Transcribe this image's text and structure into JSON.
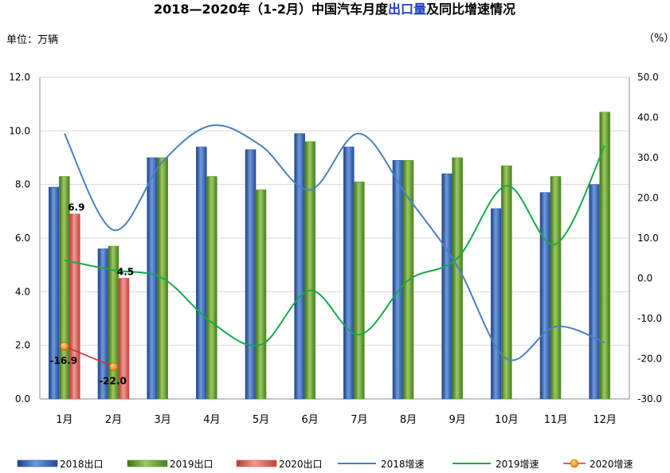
{
  "chart_data": {
    "type": "bar",
    "title_parts": [
      {
        "text": "2018—2020年（1-2月）中国汽车月度",
        "highlight": false
      },
      {
        "text": "出口量",
        "highlight": true
      },
      {
        "text": "及同比增速情况",
        "highlight": false
      }
    ],
    "left_unit": "单位：万辆",
    "right_unit": "（%）",
    "categories": [
      "1月",
      "2月",
      "3月",
      "4月",
      "5月",
      "6月",
      "7月",
      "8月",
      "9月",
      "10月",
      "11月",
      "12月"
    ],
    "left_axis": {
      "min": 0,
      "max": 12,
      "step": 2,
      "ticks": [
        "0.0",
        "2.0",
        "4.0",
        "6.0",
        "8.0",
        "10.0",
        "12.0"
      ]
    },
    "right_axis": {
      "min": -30,
      "max": 50,
      "step": 10,
      "ticks": [
        "-30.0",
        "-20.0",
        "-10.0",
        "0.0",
        "10.0",
        "20.0",
        "30.0",
        "40.0",
        "50.0"
      ]
    },
    "bar_series": [
      {
        "name": "2018出口",
        "color": "#2f5aa8",
        "values": [
          7.9,
          5.6,
          9.0,
          9.4,
          9.3,
          9.9,
          9.4,
          8.9,
          8.4,
          7.1,
          7.7,
          8.0
        ]
      },
      {
        "name": "2019出口",
        "color": "#5b9a2e",
        "values": [
          8.3,
          5.7,
          9.0,
          8.3,
          7.8,
          9.6,
          8.1,
          8.9,
          9.0,
          8.7,
          8.3,
          10.7
        ]
      },
      {
        "name": "2020出口",
        "color": "#d9534f",
        "values": [
          6.9,
          4.5,
          null,
          null,
          null,
          null,
          null,
          null,
          null,
          null,
          null,
          null
        ]
      }
    ],
    "line_series": [
      {
        "name": "2018增速",
        "color": "#4a7fc1",
        "values": [
          36,
          12,
          29,
          38,
          33,
          22,
          36,
          20,
          3,
          -20,
          -12,
          -16
        ]
      },
      {
        "name": "2019增速",
        "color": "#19a84a",
        "values": [
          4.5,
          2,
          0,
          -11,
          -16.5,
          -3,
          -14,
          -0.5,
          5,
          23,
          8.5,
          33
        ]
      },
      {
        "name": "2020增速",
        "color": "#c0392b",
        "values": [
          -16.9,
          -22.0,
          null,
          null,
          null,
          null,
          null,
          null,
          null,
          null,
          null,
          null
        ]
      }
    ],
    "data_labels": {
      "bar_2020": [
        "6.9",
        "4.5"
      ],
      "line_2020": [
        "-16.9",
        "-22.0"
      ]
    },
    "legend_position": "bottom",
    "grid": "horizontal"
  }
}
